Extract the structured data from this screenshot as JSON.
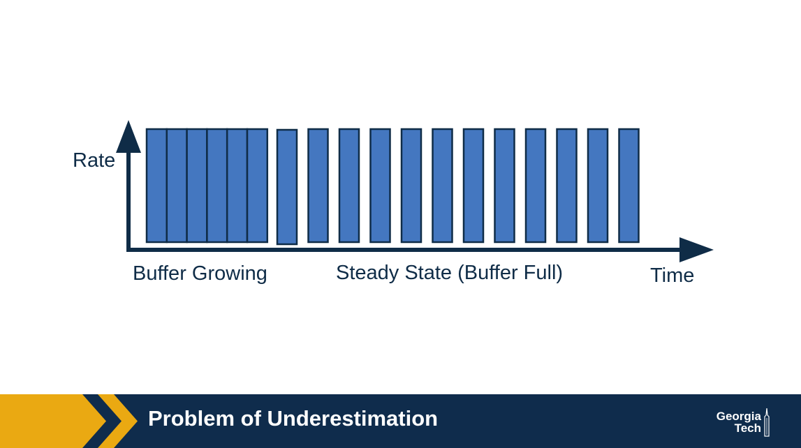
{
  "diagram": {
    "y_axis_label": "Rate",
    "x_axis_label": "Time",
    "phase_labels": {
      "growing": "Buffer Growing",
      "steady": "Steady State (Buffer Full)"
    },
    "packets": {
      "growing_count": 6,
      "steady_count": 12
    },
    "colors": {
      "axis": "#0f2c47",
      "packet_fill": "#4477c0",
      "packet_stroke": "#0f2c47"
    }
  },
  "footer": {
    "title": "Problem of Underestimation",
    "logo_line_1": "Georgia",
    "logo_line_2": "Tech",
    "colors": {
      "band": "#0f2c4c",
      "chevron": "#eaa912"
    }
  }
}
